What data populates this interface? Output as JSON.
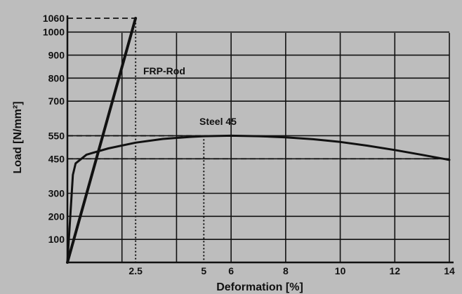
{
  "chart_data": {
    "type": "line",
    "xlabel": "Deformation [%]",
    "ylabel": "Load [N/mm²]",
    "xlim": [
      0,
      14
    ],
    "ylim": [
      0,
      1060
    ],
    "x_ticks": [
      2.5,
      5,
      6,
      8,
      10,
      12,
      14
    ],
    "x_tick_labels": [
      "2.5",
      "5",
      "6",
      "8",
      "10",
      "12",
      "14"
    ],
    "y_ticks": [
      100,
      200,
      300,
      450,
      550,
      700,
      800,
      900,
      1000,
      1060
    ],
    "y_tick_labels": [
      "100",
      "200",
      "300",
      "450",
      "550",
      "700",
      "800",
      "900",
      "1000",
      "1060"
    ],
    "grid": true,
    "series": [
      {
        "name": "FRP-Rod",
        "x": [
          0,
          2.5
        ],
        "y": [
          0,
          1060
        ]
      },
      {
        "name": "Steel 45",
        "x": [
          0,
          0.2,
          0.3,
          0.7,
          1.5,
          2.5,
          3.5,
          4.5,
          5,
          6,
          7,
          8,
          9,
          10,
          11,
          12,
          13,
          14
        ],
        "y": [
          0,
          380,
          430,
          468,
          495,
          520,
          536,
          545,
          548,
          550,
          548,
          543,
          535,
          523,
          507,
          488,
          467,
          445
        ]
      }
    ],
    "reference_lines": [
      {
        "x": 2.5,
        "y": 1060
      },
      {
        "x": 5,
        "y": 550
      },
      {
        "x": 14,
        "y": 450
      }
    ],
    "colors": {
      "background": "#bdbdbd",
      "ink": "#111111"
    }
  }
}
